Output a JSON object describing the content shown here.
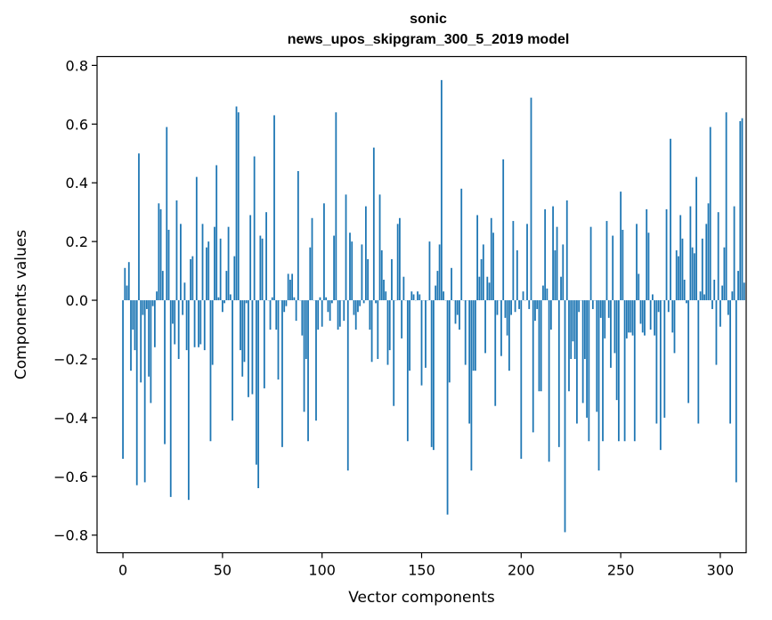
{
  "chart_data": {
    "type": "bar",
    "title": "sonic",
    "subtitle": "news_upos_skipgram_300_5_2019 model",
    "xlabel": "Vector components",
    "ylabel": "Components values",
    "xlim": [
      -13,
      313
    ],
    "ylim": [
      -0.86,
      0.83
    ],
    "xticks": [
      0,
      50,
      100,
      150,
      200,
      250,
      300
    ],
    "xtick_labels": [
      "0",
      "50",
      "100",
      "150",
      "200",
      "250",
      "300"
    ],
    "yticks": [
      -0.8,
      -0.6,
      -0.4,
      -0.2,
      0.0,
      0.2,
      0.4,
      0.6,
      0.8
    ],
    "ytick_labels": [
      "−0.8",
      "−0.6",
      "−0.4",
      "−0.2",
      "0.0",
      "0.2",
      "0.4",
      "0.6",
      "0.8"
    ],
    "bar_color": "#1f77b4",
    "grid": false,
    "series": [
      {
        "name": "sonic",
        "values": [
          -0.54,
          0.11,
          0.05,
          0.13,
          -0.24,
          -0.1,
          -0.17,
          -0.63,
          0.5,
          -0.28,
          -0.05,
          -0.62,
          -0.03,
          -0.26,
          -0.35,
          -0.02,
          -0.16,
          0.03,
          0.33,
          0.31,
          0.1,
          -0.49,
          0.59,
          0.24,
          -0.67,
          -0.08,
          -0.15,
          0.34,
          -0.2,
          0.26,
          -0.05,
          0.06,
          -0.17,
          -0.68,
          0.14,
          0.15,
          -0.16,
          0.42,
          -0.16,
          -0.15,
          0.26,
          -0.17,
          0.18,
          0.2,
          -0.48,
          -0.22,
          0.25,
          0.46,
          0.01,
          0.21,
          -0.04,
          -0.01,
          0.1,
          0.25,
          0.02,
          -0.41,
          0.15,
          0.66,
          0.64,
          -0.17,
          -0.26,
          -0.21,
          -0.01,
          -0.33,
          0.29,
          -0.32,
          0.49,
          -0.56,
          -0.64,
          0.22,
          0.21,
          -0.3,
          0.3,
          0.0,
          -0.1,
          0.01,
          0.63,
          -0.1,
          -0.27,
          0.0,
          -0.5,
          -0.04,
          -0.02,
          0.09,
          0.07,
          0.09,
          0.01,
          -0.07,
          0.44,
          0.0,
          -0.12,
          -0.38,
          -0.2,
          -0.48,
          0.18,
          0.28,
          0.0,
          -0.41,
          -0.1,
          0.01,
          -0.09,
          0.33,
          0.01,
          -0.04,
          -0.07,
          -0.01,
          0.22,
          0.64,
          -0.1,
          -0.09,
          0.0,
          -0.07,
          0.36,
          -0.58,
          0.23,
          0.2,
          -0.05,
          -0.1,
          -0.04,
          -0.02,
          0.19,
          -0.01,
          0.32,
          0.14,
          -0.1,
          -0.21,
          0.52,
          -0.01,
          -0.2,
          0.36,
          0.17,
          0.07,
          0.03,
          -0.22,
          -0.17,
          0.14,
          -0.36,
          0.0,
          0.26,
          0.28,
          -0.13,
          0.08,
          0.0,
          -0.48,
          -0.24,
          0.03,
          0.02,
          0.0,
          0.03,
          0.02,
          -0.29,
          0.0,
          -0.23,
          0.0,
          0.2,
          -0.5,
          -0.51,
          0.05,
          0.1,
          0.19,
          0.75,
          0.03,
          0.0,
          -0.73,
          -0.28,
          0.11,
          0.0,
          -0.08,
          -0.05,
          -0.1,
          0.38,
          0.0,
          -0.22,
          0.0,
          -0.42,
          -0.58,
          -0.24,
          -0.24,
          0.29,
          0.08,
          0.14,
          0.19,
          -0.18,
          0.08,
          0.06,
          0.28,
          0.23,
          -0.36,
          -0.05,
          0.0,
          -0.19,
          0.48,
          -0.06,
          -0.12,
          -0.24,
          -0.05,
          0.27,
          -0.04,
          0.17,
          -0.03,
          -0.54,
          0.03,
          0.0,
          0.26,
          -0.03,
          0.69,
          -0.45,
          -0.07,
          -0.03,
          -0.31,
          -0.31,
          0.05,
          0.31,
          0.04,
          -0.55,
          -0.1,
          0.32,
          0.17,
          0.25,
          -0.5,
          0.08,
          0.19,
          -0.79,
          0.34,
          -0.31,
          -0.2,
          -0.14,
          -0.2,
          -0.42,
          -0.04,
          0.0,
          -0.35,
          -0.2,
          -0.4,
          -0.48,
          0.25,
          -0.03,
          0.0,
          -0.38,
          -0.58,
          -0.06,
          -0.48,
          -0.13,
          0.27,
          -0.06,
          -0.23,
          0.22,
          -0.18,
          -0.34,
          -0.48,
          0.37,
          0.24,
          -0.48,
          -0.13,
          -0.11,
          -0.11,
          -0.12,
          -0.48,
          0.26,
          0.09,
          -0.08,
          -0.11,
          -0.12,
          0.31,
          0.23,
          -0.1,
          0.02,
          -0.12,
          -0.42,
          -0.04,
          -0.51,
          0.0,
          -0.4,
          0.31,
          -0.04,
          0.55,
          -0.11,
          -0.18,
          0.17,
          0.15,
          0.29,
          0.21,
          0.07,
          -0.01,
          -0.35,
          0.32,
          0.18,
          0.16,
          0.42,
          -0.42,
          0.03,
          0.21,
          0.02,
          0.26,
          0.33,
          0.59,
          -0.03,
          0.07,
          -0.22,
          0.3,
          -0.09,
          0.05,
          0.18,
          0.64,
          -0.05,
          -0.42,
          0.03,
          0.32,
          -0.62,
          0.1,
          0.61,
          0.62,
          0.06
        ]
      }
    ]
  }
}
